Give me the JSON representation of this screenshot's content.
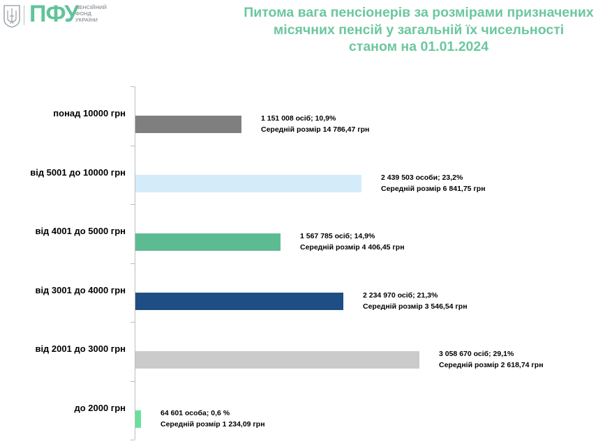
{
  "logo": {
    "abbr": "ПФУ",
    "line1": "ПЕНСІЙНИЙ",
    "line2": "ФОНД",
    "line3": "УКРАЇНИ",
    "emblem_icon": "trident-icon"
  },
  "chart_data": {
    "type": "bar",
    "orientation": "horizontal",
    "title_lines": [
      "Питома вага пенсіонерів за розмірами призначених",
      "місячних пенсій у загальній їх чисельності",
      "станом на 01.01.2024"
    ],
    "categories": [
      "понад 10000 грн",
      "від 5001 до 10000 грн",
      "від 4001 до 5000 грн",
      "від 3001 до 4000 грн",
      "від 2001 до 3000 грн",
      "до 2000 грн"
    ],
    "values": [
      10.9,
      23.2,
      14.9,
      21.3,
      29.1,
      0.6
    ],
    "colors": [
      "#7f7f7f",
      "#d4ebfa",
      "#5dbb93",
      "#1f4e84",
      "#cbcbcb",
      "#69e09a"
    ],
    "data_labels": [
      [
        "1 151 008 осіб;  10,9%",
        "Середній розмір 14 786,47 грн"
      ],
      [
        "2 439 503 особи; 23,2%",
        "Середній розмір 6 841,75 грн"
      ],
      [
        "1 567 785 осіб; 14,9%",
        "Середній розмір 4 406,45 грн"
      ],
      [
        "2 234 970 осіб; 21,3%",
        "Середній розмір 3 546,54 грн"
      ],
      [
        "3 058 670 осіб; 29,1%",
        "Середній розмір 2 618,74 грн"
      ],
      [
        "64 601 особа; 0,6 %",
        "Середній розмір 1 234,09 грн"
      ]
    ],
    "xlim": [
      0,
      29.1
    ],
    "grid": false
  }
}
